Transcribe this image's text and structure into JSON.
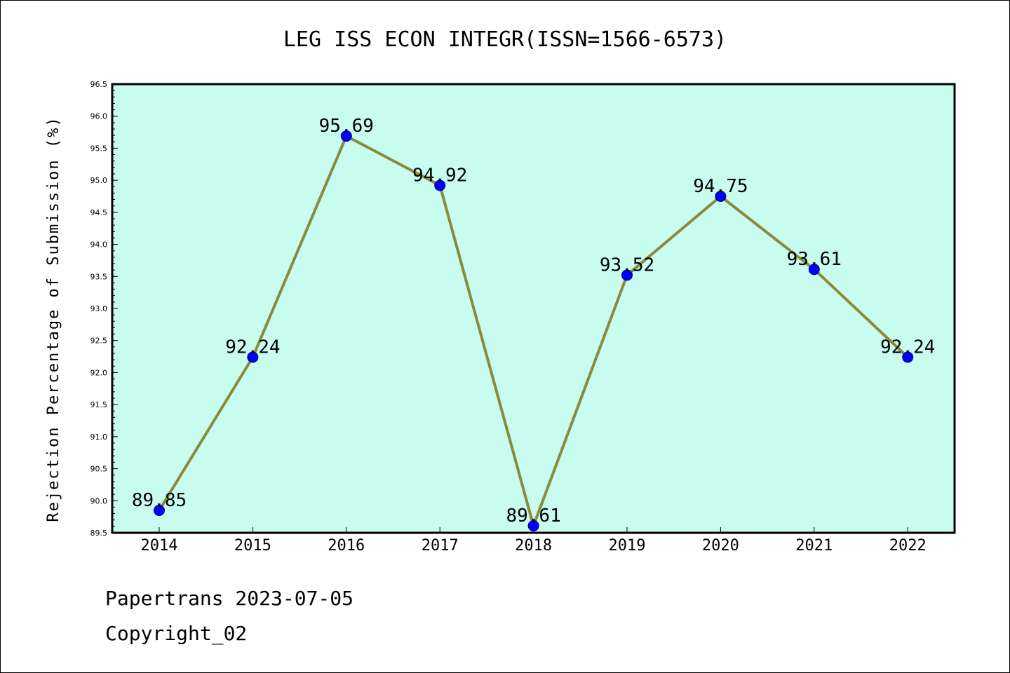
{
  "chart_data": {
    "type": "line",
    "title": "LEG ISS ECON INTEGR(ISSN=1566-6573)",
    "xlabel": "",
    "ylabel": "Rejection Percentage of Submission (%)",
    "categories": [
      "2014",
      "2015",
      "2016",
      "2017",
      "2018",
      "2019",
      "2020",
      "2021",
      "2022"
    ],
    "values": [
      89.85,
      92.24,
      95.69,
      94.92,
      89.61,
      93.52,
      94.75,
      93.61,
      92.24
    ],
    "data_labels": [
      "89.85",
      "92.24",
      "95.69",
      "94.92",
      "89.61",
      "93.52",
      "94.75",
      "93.61",
      "92.24"
    ],
    "ylim": [
      89.5,
      96.5
    ],
    "yticks": [
      "89.5",
      "90.0",
      "90.5",
      "91.0",
      "91.5",
      "92.0",
      "92.5",
      "93.0",
      "93.5",
      "94.0",
      "94.5",
      "95.0",
      "95.5",
      "96.0",
      "96.5"
    ],
    "grid": false,
    "legend": "none",
    "colors": {
      "plot_background": "#c8fcee",
      "line": "#8b8a3a",
      "marker_fill": "#0000ff",
      "marker_edge": "#000080"
    }
  },
  "footer": {
    "line1": "Papertrans 2023-07-05",
    "line2": "Copyright_02"
  }
}
